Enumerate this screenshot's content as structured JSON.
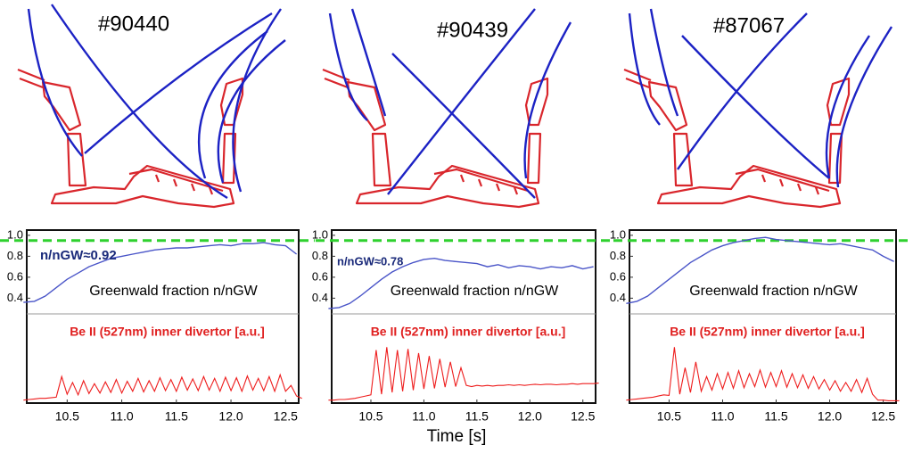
{
  "chart_data": [
    {
      "type": "line",
      "title": "#90440",
      "label": "Greenwald fraction n/nGW",
      "annotation": "n/nGW≈0.92",
      "x": [
        10.1,
        10.2,
        10.3,
        10.4,
        10.5,
        10.6,
        10.7,
        10.8,
        10.9,
        11.0,
        11.1,
        11.2,
        11.3,
        11.4,
        11.5,
        11.6,
        11.7,
        11.8,
        11.9,
        12.0,
        12.1,
        12.2,
        12.3,
        12.4,
        12.5,
        12.6
      ],
      "series": [
        {
          "name": "Greenwald fraction",
          "color": "#4a55c8",
          "values": [
            0.36,
            0.37,
            0.42,
            0.5,
            0.58,
            0.64,
            0.7,
            0.74,
            0.78,
            0.8,
            0.82,
            0.84,
            0.86,
            0.87,
            0.88,
            0.88,
            0.89,
            0.9,
            0.91,
            0.9,
            0.92,
            0.92,
            0.93,
            0.91,
            0.9,
            0.82
          ]
        }
      ],
      "xlim": [
        10.13,
        12.62
      ],
      "ylim": [
        0.25,
        1.05
      ],
      "yticks": [
        {
          "value": 1.0,
          "label": "1.0"
        },
        0.8,
        0.6,
        0.4
      ],
      "reference_line": {
        "value": 0.95,
        "color": "#2fd12f"
      }
    },
    {
      "type": "line",
      "label": "Be II (527nm) inner divertor [a.u.]",
      "x": [
        10.1,
        10.15,
        10.2,
        10.25,
        10.3,
        10.35,
        10.4,
        10.45,
        10.5,
        10.55,
        10.6,
        10.65,
        10.7,
        10.75,
        10.8,
        10.85,
        10.9,
        10.95,
        11.0,
        11.05,
        11.1,
        11.15,
        11.2,
        11.25,
        11.3,
        11.35,
        11.4,
        11.45,
        11.5,
        11.55,
        11.6,
        11.65,
        11.7,
        11.75,
        11.8,
        11.85,
        11.9,
        11.95,
        12.0,
        12.05,
        12.1,
        12.15,
        12.2,
        12.25,
        12.3,
        12.35,
        12.4,
        12.45,
        12.5,
        12.55,
        12.6,
        12.65
      ],
      "series": [
        {
          "name": "Be II",
          "color": "#ee1c1c",
          "values": [
            0.05,
            0.06,
            0.07,
            0.08,
            0.08,
            0.09,
            0.1,
            0.45,
            0.15,
            0.35,
            0.14,
            0.38,
            0.16,
            0.33,
            0.17,
            0.36,
            0.18,
            0.4,
            0.17,
            0.37,
            0.2,
            0.42,
            0.19,
            0.38,
            0.2,
            0.43,
            0.21,
            0.4,
            0.2,
            0.44,
            0.22,
            0.41,
            0.21,
            0.45,
            0.22,
            0.42,
            0.2,
            0.44,
            0.21,
            0.43,
            0.2,
            0.46,
            0.22,
            0.42,
            0.21,
            0.45,
            0.2,
            0.48,
            0.2,
            0.3,
            0.12,
            0.08
          ]
        }
      ],
      "xlim": [
        10.13,
        12.62
      ],
      "ylim": [
        0,
        1
      ],
      "xticks": [
        10.5,
        {
          "value": 11.0,
          "label": "11.0"
        },
        11.5,
        {
          "value": 12.0,
          "label": "12.0"
        },
        12.5
      ]
    },
    {
      "type": "line",
      "title": "#90439",
      "label": "Greenwald fraction n/nGW",
      "annotation": "n/nGW≈0.78",
      "x": [
        10.1,
        10.2,
        10.3,
        10.4,
        10.5,
        10.6,
        10.7,
        10.8,
        10.9,
        11.0,
        11.1,
        11.2,
        11.3,
        11.4,
        11.5,
        11.6,
        11.7,
        11.8,
        11.9,
        12.0,
        12.1,
        12.2,
        12.3,
        12.4,
        12.5,
        12.6
      ],
      "series": [
        {
          "name": "Greenwald fraction",
          "color": "#4a55c8",
          "values": [
            0.3,
            0.31,
            0.35,
            0.42,
            0.5,
            0.58,
            0.65,
            0.7,
            0.74,
            0.77,
            0.78,
            0.76,
            0.75,
            0.74,
            0.73,
            0.7,
            0.72,
            0.69,
            0.71,
            0.7,
            0.68,
            0.7,
            0.69,
            0.71,
            0.68,
            0.7
          ]
        }
      ],
      "xlim": [
        10.13,
        12.62
      ],
      "ylim": [
        0.25,
        1.05
      ],
      "yticks": [
        {
          "value": 1.0,
          "label": "1.0"
        },
        0.8,
        0.6,
        0.4
      ],
      "reference_line": {
        "value": 0.95,
        "color": "#2fd12f"
      }
    },
    {
      "type": "line",
      "label": "Be II (527nm) inner divertor [a.u.]",
      "xlabel": "Time [s]",
      "x": [
        10.1,
        10.15,
        10.2,
        10.25,
        10.3,
        10.35,
        10.4,
        10.45,
        10.5,
        10.55,
        10.6,
        10.65,
        10.7,
        10.75,
        10.8,
        10.85,
        10.9,
        10.95,
        11.0,
        11.05,
        11.1,
        11.15,
        11.2,
        11.25,
        11.3,
        11.35,
        11.4,
        11.45,
        11.5,
        11.55,
        11.6,
        11.65,
        11.7,
        11.75,
        11.8,
        11.85,
        11.9,
        11.95,
        12.0,
        12.05,
        12.1,
        12.15,
        12.2,
        12.25,
        12.3,
        12.35,
        12.4,
        12.45,
        12.5,
        12.55,
        12.6,
        12.65
      ],
      "series": [
        {
          "name": "Be II",
          "color": "#ee1c1c",
          "values": [
            0.05,
            0.05,
            0.06,
            0.06,
            0.07,
            0.08,
            0.1,
            0.12,
            0.14,
            0.9,
            0.15,
            0.95,
            0.18,
            0.9,
            0.2,
            0.92,
            0.22,
            0.85,
            0.24,
            0.8,
            0.25,
            0.75,
            0.27,
            0.7,
            0.28,
            0.6,
            0.3,
            0.28,
            0.3,
            0.29,
            0.3,
            0.29,
            0.3,
            0.3,
            0.31,
            0.3,
            0.31,
            0.3,
            0.31,
            0.32,
            0.31,
            0.32,
            0.32,
            0.31,
            0.32,
            0.32,
            0.33,
            0.32,
            0.33,
            0.33,
            0.33,
            0.34
          ]
        }
      ],
      "xlim": [
        10.13,
        12.62
      ],
      "ylim": [
        0,
        1
      ],
      "xticks": [
        10.5,
        {
          "value": 11.0,
          "label": "11.0"
        },
        11.5,
        {
          "value": 12.0,
          "label": "12.0"
        },
        12.5
      ]
    },
    {
      "type": "line",
      "title": "#87067",
      "label": "Greenwald fraction n/nGW",
      "x": [
        10.1,
        10.2,
        10.3,
        10.4,
        10.5,
        10.6,
        10.7,
        10.8,
        10.9,
        11.0,
        11.1,
        11.2,
        11.3,
        11.4,
        11.5,
        11.6,
        11.7,
        11.8,
        11.9,
        12.0,
        12.1,
        12.2,
        12.3,
        12.4,
        12.5,
        12.6
      ],
      "series": [
        {
          "name": "Greenwald fraction",
          "color": "#4a55c8",
          "values": [
            0.35,
            0.37,
            0.42,
            0.5,
            0.58,
            0.66,
            0.74,
            0.8,
            0.86,
            0.9,
            0.93,
            0.95,
            0.97,
            0.98,
            0.96,
            0.95,
            0.94,
            0.93,
            0.92,
            0.91,
            0.92,
            0.9,
            0.88,
            0.86,
            0.8,
            0.75
          ]
        }
      ],
      "xlim": [
        10.13,
        12.62
      ],
      "ylim": [
        0.25,
        1.05
      ],
      "yticks": [
        {
          "value": 1.0,
          "label": "1.0"
        },
        0.8,
        0.6,
        0.4
      ],
      "reference_line": {
        "value": 0.95,
        "color": "#2fd12f"
      }
    },
    {
      "type": "line",
      "label": "Be II (527nm) inner divertor [a.u.]",
      "x": [
        10.1,
        10.15,
        10.2,
        10.25,
        10.3,
        10.35,
        10.4,
        10.45,
        10.5,
        10.55,
        10.6,
        10.65,
        10.7,
        10.75,
        10.8,
        10.85,
        10.9,
        10.95,
        11.0,
        11.05,
        11.1,
        11.15,
        11.2,
        11.25,
        11.3,
        11.35,
        11.4,
        11.45,
        11.5,
        11.55,
        11.6,
        11.65,
        11.7,
        11.75,
        11.8,
        11.85,
        11.9,
        11.95,
        12.0,
        12.05,
        12.1,
        12.15,
        12.2,
        12.25,
        12.3,
        12.35,
        12.4,
        12.45,
        12.5,
        12.55,
        12.6,
        12.65
      ],
      "series": [
        {
          "name": "Be II",
          "color": "#ee1c1c",
          "values": [
            0.05,
            0.06,
            0.07,
            0.08,
            0.09,
            0.1,
            0.12,
            0.14,
            0.13,
            0.95,
            0.15,
            0.6,
            0.18,
            0.7,
            0.2,
            0.45,
            0.22,
            0.5,
            0.24,
            0.52,
            0.25,
            0.55,
            0.26,
            0.5,
            0.28,
            0.56,
            0.27,
            0.52,
            0.28,
            0.55,
            0.27,
            0.5,
            0.26,
            0.48,
            0.25,
            0.45,
            0.24,
            0.4,
            0.22,
            0.38,
            0.2,
            0.35,
            0.2,
            0.4,
            0.18,
            0.42,
            0.15,
            0.05,
            0.05,
            0.04,
            0.04,
            0.04
          ]
        }
      ],
      "xlim": [
        10.13,
        12.62
      ],
      "ylim": [
        0,
        1
      ],
      "xticks": [
        10.5,
        {
          "value": 11.0,
          "label": "11.0"
        },
        11.5,
        {
          "value": 12.0,
          "label": "12.0"
        },
        12.5
      ]
    }
  ]
}
